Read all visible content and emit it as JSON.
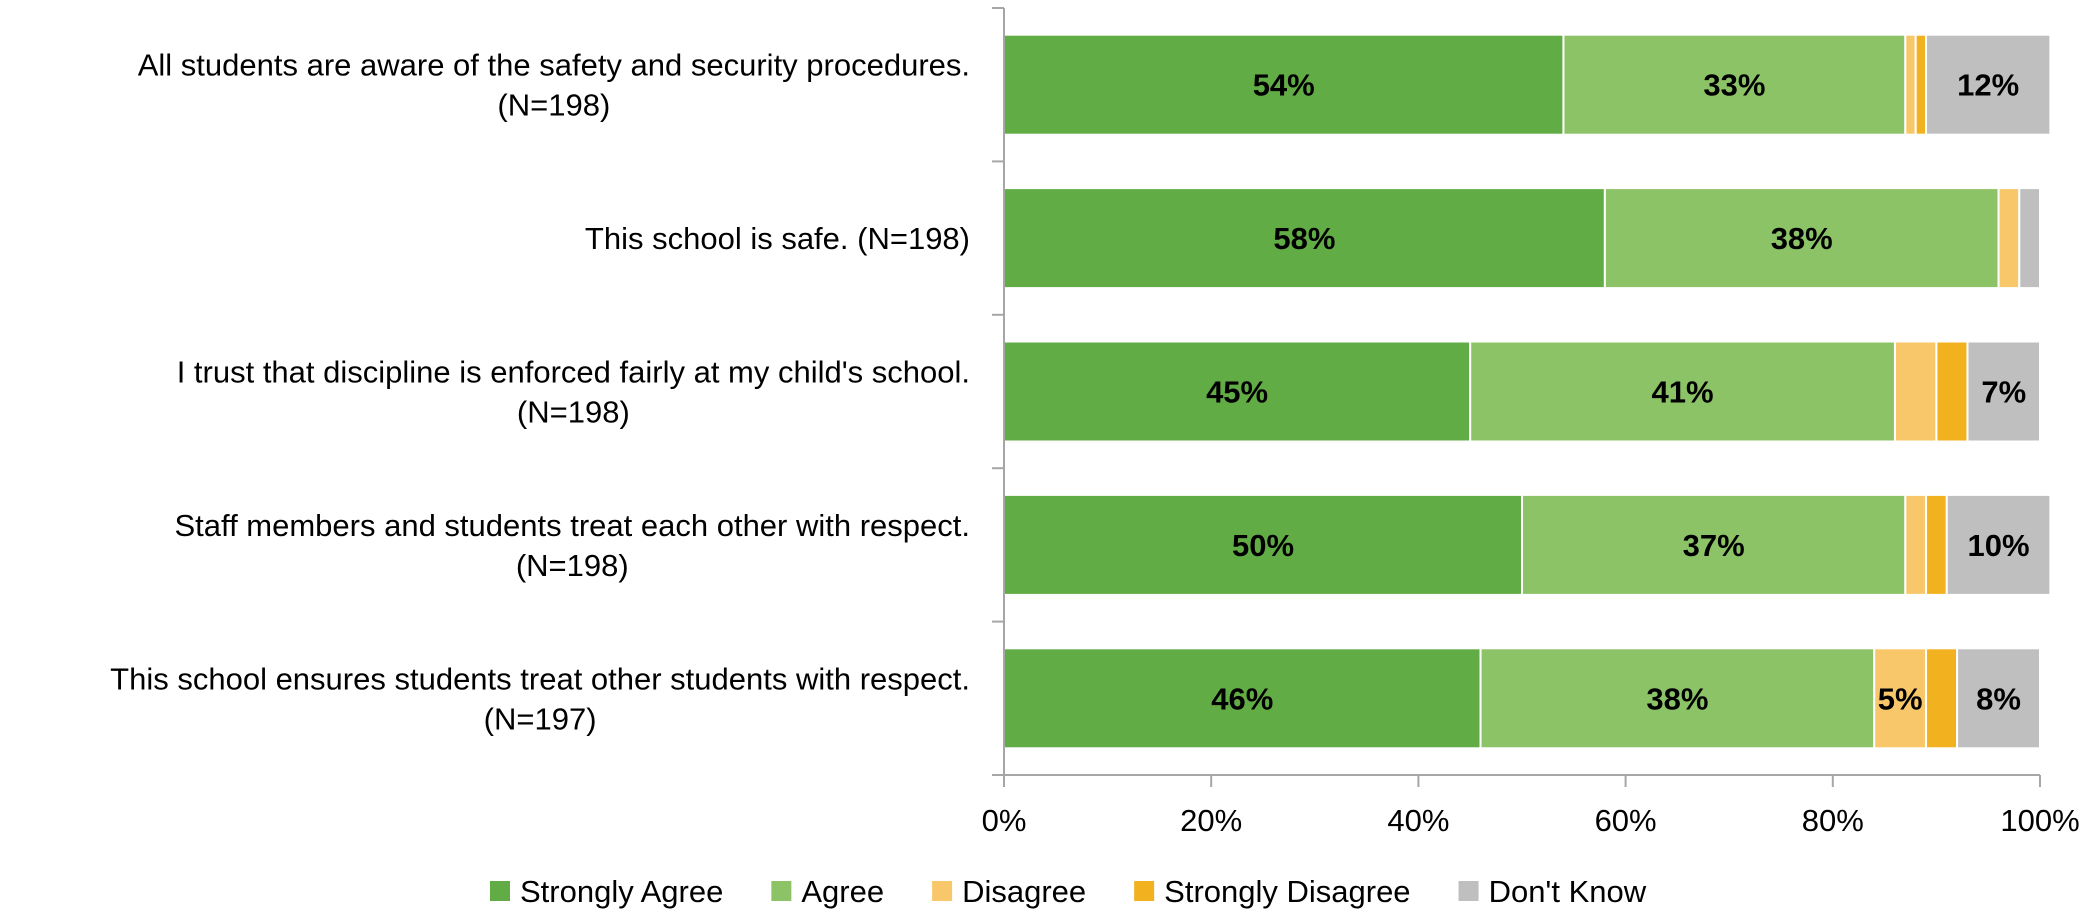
{
  "chart_data": {
    "type": "bar",
    "orientation": "horizontal",
    "stacked": true,
    "title": "",
    "xlabel": "",
    "ylabel": "",
    "xlim": [
      0,
      100
    ],
    "x_ticks": [
      "0%",
      "20%",
      "40%",
      "60%",
      "80%",
      "100%"
    ],
    "grid": false,
    "legend_position": "bottom",
    "categories": [
      [
        "All students are aware of the safety and security procedures.",
        "(N=198)"
      ],
      [
        "This school is safe. (N=198)"
      ],
      [
        "I trust that discipline is enforced fairly at my child's school.",
        "(N=198)"
      ],
      [
        "Staff members and students treat each other with respect.",
        "(N=198)"
      ],
      [
        "This school ensures students treat other students with respect.",
        "(N=197)"
      ]
    ],
    "series": [
      {
        "name": "Strongly Agree",
        "color": "#62ac45",
        "values": [
          54,
          58,
          45,
          50,
          46
        ],
        "labels": [
          "54%",
          "58%",
          "45%",
          "50%",
          "46%"
        ]
      },
      {
        "name": "Agree",
        "color": "#8cc366",
        "values": [
          33,
          38,
          41,
          37,
          38
        ],
        "labels": [
          "33%",
          "38%",
          "41%",
          "37%",
          "38%"
        ]
      },
      {
        "name": "Disagree",
        "color": "#f8c76a",
        "values": [
          1,
          2,
          4,
          2,
          5
        ],
        "labels": [
          "",
          "",
          "",
          "",
          "5%"
        ]
      },
      {
        "name": "Strongly Disagree",
        "color": "#f2b21f",
        "values": [
          1,
          0,
          3,
          2,
          3
        ],
        "labels": [
          "",
          "",
          "",
          "",
          ""
        ]
      },
      {
        "name": "Don't Know",
        "color": "#bfbfbf",
        "values": [
          12,
          2,
          7,
          10,
          8
        ],
        "labels": [
          "12%",
          "",
          "7%",
          "10%",
          "8%"
        ]
      }
    ]
  }
}
